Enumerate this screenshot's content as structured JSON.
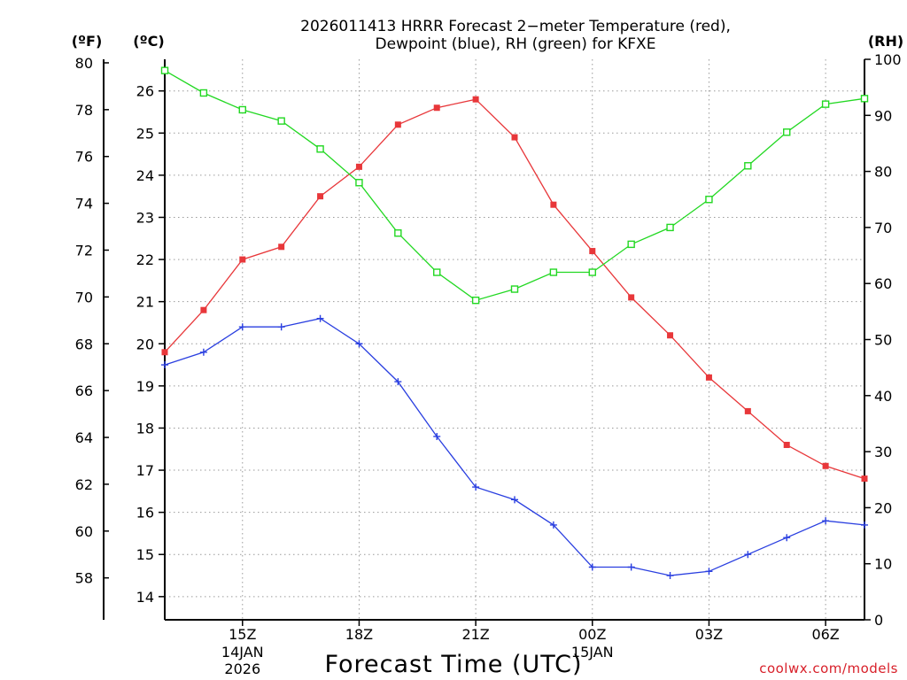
{
  "chart_data": {
    "type": "line",
    "title_lines": [
      "2026011413 HRRR Forecast 2−meter Temperature (red),",
      "Dewpoint (blue), RH (green) for KFXE"
    ],
    "xlabel": "Forecast Time (UTC)",
    "units": {
      "fahrenheit": "(ºF)",
      "celsius": "(ºC)",
      "rh": "(RH)"
    },
    "x_hours": [
      13,
      14,
      15,
      16,
      17,
      18,
      19,
      20,
      21,
      22,
      23,
      24,
      25,
      26,
      27,
      28,
      29,
      30,
      31
    ],
    "xlim": [
      13,
      31
    ],
    "x_ticks": [
      {
        "hour": 15,
        "label": "15Z",
        "sub": [
          "14JAN",
          "2026"
        ]
      },
      {
        "hour": 18,
        "label": "18Z",
        "sub": []
      },
      {
        "hour": 21,
        "label": "21Z",
        "sub": []
      },
      {
        "hour": 24,
        "label": "00Z",
        "sub": [
          "15JAN"
        ]
      },
      {
        "hour": 27,
        "label": "03Z",
        "sub": []
      },
      {
        "hour": 30,
        "label": "06Z",
        "sub": []
      }
    ],
    "celsius_axis": {
      "ylim": [
        13.45,
        26.75
      ],
      "ticks": [
        14,
        15,
        16,
        17,
        18,
        19,
        20,
        21,
        22,
        23,
        24,
        25,
        26
      ]
    },
    "fahrenheit_ticks": [
      58,
      60,
      62,
      64,
      66,
      68,
      70,
      72,
      74,
      76,
      78,
      80
    ],
    "rh_axis": {
      "ylim": [
        0,
        100
      ],
      "ticks": [
        0,
        10,
        20,
        30,
        40,
        50,
        60,
        70,
        80,
        90,
        100
      ]
    },
    "series": [
      {
        "name": "Temperature",
        "color": "#e8373a",
        "marker": "filled-square",
        "axis": "celsius",
        "values": [
          19.8,
          20.8,
          22.0,
          22.3,
          23.5,
          24.2,
          25.2,
          25.6,
          25.8,
          24.9,
          23.3,
          22.2,
          21.1,
          20.2,
          19.2,
          18.4,
          17.6,
          17.1,
          16.8
        ]
      },
      {
        "name": "Dewpoint",
        "color": "#2a3fe0",
        "marker": "plus",
        "axis": "celsius",
        "values": [
          19.5,
          19.8,
          20.4,
          20.4,
          20.6,
          20.0,
          19.1,
          17.8,
          16.6,
          16.3,
          15.7,
          14.7,
          14.7,
          14.5,
          14.6,
          15.0,
          15.4,
          15.8,
          15.7
        ]
      },
      {
        "name": "RH",
        "color": "#22d822",
        "marker": "open-square",
        "axis": "rh",
        "values": [
          98,
          94,
          91,
          89,
          84,
          78,
          69,
          62,
          57,
          59,
          62,
          62,
          67,
          70,
          75,
          81,
          87,
          92,
          93
        ]
      }
    ],
    "credit": "coolwx.com/models"
  }
}
